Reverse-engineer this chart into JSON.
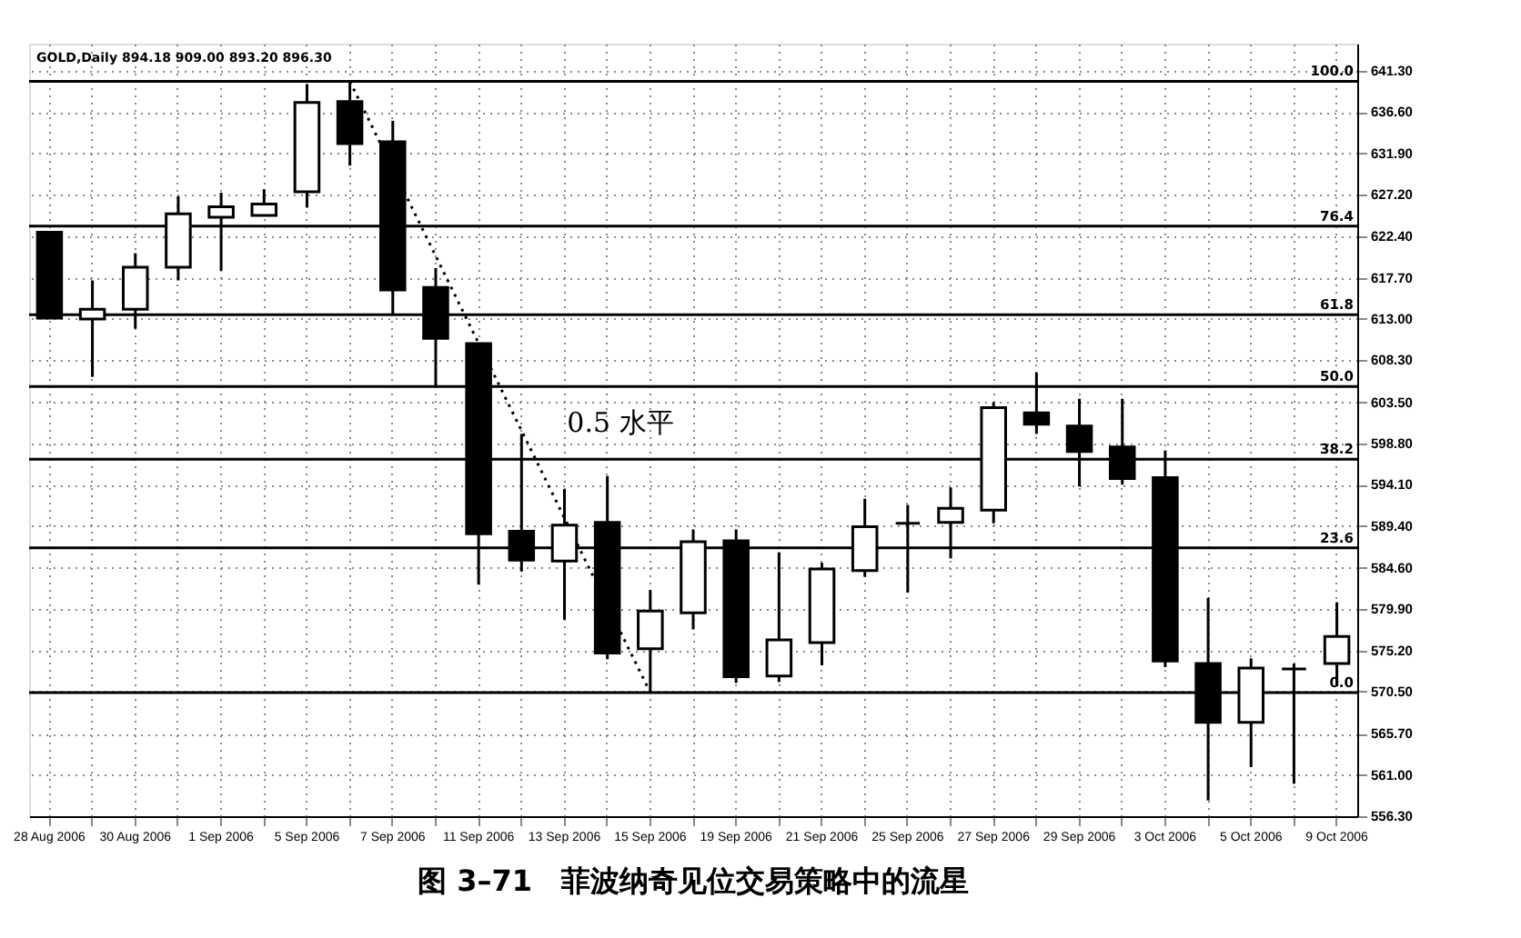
{
  "chart_data": {
    "type": "candlestick",
    "title": "图 3–71　菲波纳奇见位交易策略中的流星",
    "categories": [
      "28 Aug 2006",
      null,
      "30 Aug 2006",
      null,
      "1 Sep 2006",
      null,
      "5 Sep 2006",
      null,
      "7 Sep 2006",
      null,
      "11 Sep 2006",
      null,
      "13 Sep 2006",
      null,
      "15 Sep 2006",
      null,
      "19 Sep 2006",
      null,
      "21 Sep 2006",
      null,
      "25 Sep 2006",
      null,
      "27 Sep 2006",
      null,
      "29 Sep 2006",
      null,
      "3 Oct 2006",
      null,
      "5 Oct 2006",
      null,
      "9 Oct 2006"
    ],
    "ohlc": [
      [
        622.9,
        623.0,
        613.0,
        613.1
      ],
      [
        613.0,
        617.4,
        606.4,
        614.1
      ],
      [
        614.1,
        620.5,
        611.9,
        618.9
      ],
      [
        618.9,
        627.0,
        617.4,
        625.0
      ],
      [
        624.6,
        627.4,
        618.5,
        625.8
      ],
      [
        624.8,
        627.8,
        624.8,
        626.1
      ],
      [
        627.5,
        639.8,
        625.7,
        637.7
      ],
      [
        637.8,
        640.1,
        630.5,
        633.0
      ],
      [
        633.2,
        635.6,
        613.6,
        616.3
      ],
      [
        616.6,
        618.8,
        605.4,
        610.8
      ],
      [
        610.2,
        610.2,
        582.7,
        588.5
      ],
      [
        588.8,
        599.9,
        584.2,
        585.5
      ],
      [
        585.4,
        593.6,
        578.7,
        589.5
      ],
      [
        589.8,
        595.1,
        574.2,
        574.9
      ],
      [
        575.4,
        582.1,
        570.4,
        579.7
      ],
      [
        579.5,
        589.0,
        577.6,
        587.6
      ],
      [
        587.7,
        589.0,
        571.5,
        572.2
      ],
      [
        572.3,
        586.4,
        571.6,
        576.4
      ],
      [
        576.1,
        585.2,
        573.5,
        584.5
      ],
      [
        584.3,
        592.5,
        583.6,
        589.3
      ],
      [
        589.7,
        591.8,
        581.8,
        589.7
      ],
      [
        589.8,
        593.8,
        585.7,
        591.4
      ],
      [
        591.2,
        603.5,
        589.7,
        602.9
      ],
      [
        602.3,
        606.9,
        599.9,
        601.0
      ],
      [
        600.8,
        603.9,
        593.9,
        597.9
      ],
      [
        598.4,
        603.9,
        594.1,
        594.8
      ],
      [
        594.9,
        598.0,
        573.3,
        574.0
      ],
      [
        573.7,
        581.2,
        558.1,
        567.0
      ],
      [
        567.0,
        574.3,
        561.9,
        573.2
      ],
      [
        573.1,
        573.7,
        560.0,
        573.1
      ],
      [
        573.7,
        580.7,
        571.1,
        576.8
      ]
    ],
    "colors": [
      "#000000",
      "#ffffff",
      "#ffffff",
      "#ffffff",
      "#ffffff",
      "#ffffff",
      "#ffffff",
      "#000000",
      "#000000",
      "#000000",
      "#000000",
      "#000000",
      "#ffffff",
      "#000000",
      "#ffffff",
      "#ffffff",
      "#000000",
      "#ffffff",
      "#ffffff",
      "#ffffff",
      "#000000",
      "#ffffff",
      "#ffffff",
      "#000000",
      "#000000",
      "#000000",
      "#000000",
      "#000000",
      "#ffffff",
      "#000000",
      "#ffffff"
    ],
    "series": [
      {
        "type": "line",
        "color": "#000000",
        "line_style": "dotted",
        "values": [
          null,
          null,
          null,
          null,
          null,
          null,
          null,
          640.1,
          null,
          null,
          null,
          null,
          null,
          null,
          570.4,
          null,
          null,
          null,
          null,
          null,
          null,
          null,
          null,
          null,
          null,
          null,
          null,
          null,
          null,
          null,
          null
        ]
      }
    ],
    "ylim": [
      556.3,
      644.4
    ],
    "yticks": [
      {
        "value": 641.3,
        "label": "641.30"
      },
      {
        "value": 636.6,
        "label": "636.60"
      },
      {
        "value": 631.9,
        "label": "631.90"
      },
      {
        "value": 627.2,
        "label": "627.20"
      },
      {
        "value": 622.4,
        "label": "622.40"
      },
      {
        "value": 617.7,
        "label": "617.70"
      },
      {
        "value": 613.0,
        "label": "613.00"
      },
      {
        "value": 608.3,
        "label": "608.30"
      },
      {
        "value": 603.5,
        "label": "603.50"
      },
      {
        "value": 598.8,
        "label": "598.80"
      },
      {
        "value": 594.1,
        "label": "594.10"
      },
      {
        "value": 589.4,
        "label": "589.40"
      },
      {
        "value": 584.6,
        "label": "584.60"
      },
      {
        "value": 579.9,
        "label": "579.90"
      },
      {
        "value": 575.2,
        "label": "575.20"
      },
      {
        "value": 570.5,
        "label": "570.50"
      },
      {
        "value": 565.7,
        "label": "565.70"
      },
      {
        "value": 561.0,
        "label": "561.00"
      },
      {
        "value": 556.3,
        "label": "556.30"
      }
    ],
    "ref_lines": [
      {
        "axis": "y",
        "value": 640.1,
        "color": "#000000"
      },
      {
        "axis": "y",
        "value": 623.6,
        "color": "#000000"
      },
      {
        "axis": "y",
        "value": 613.5,
        "color": "#000000"
      },
      {
        "axis": "y",
        "value": 605.3,
        "color": "#000000"
      },
      {
        "axis": "y",
        "value": 597.0,
        "color": "#000000"
      },
      {
        "axis": "y",
        "value": 586.9,
        "color": "#000000"
      },
      {
        "axis": "y",
        "value": 570.4,
        "color": "#000000"
      }
    ],
    "annotations": [
      "GOLD,Daily 894.18 909.00 893.20 896.30",
      "0.5 水平",
      {
        "text": "100.0",
        "y": 640.1
      },
      {
        "text": "76.4",
        "y": 623.6
      },
      {
        "text": "61.8",
        "y": 613.5
      },
      {
        "text": "50.0",
        "y": 605.3
      },
      {
        "text": "38.2",
        "y": 597.0
      },
      {
        "text": "23.6",
        "y": 586.9
      },
      {
        "text": "0.0",
        "y": 570.4
      }
    ],
    "grid": true
  }
}
